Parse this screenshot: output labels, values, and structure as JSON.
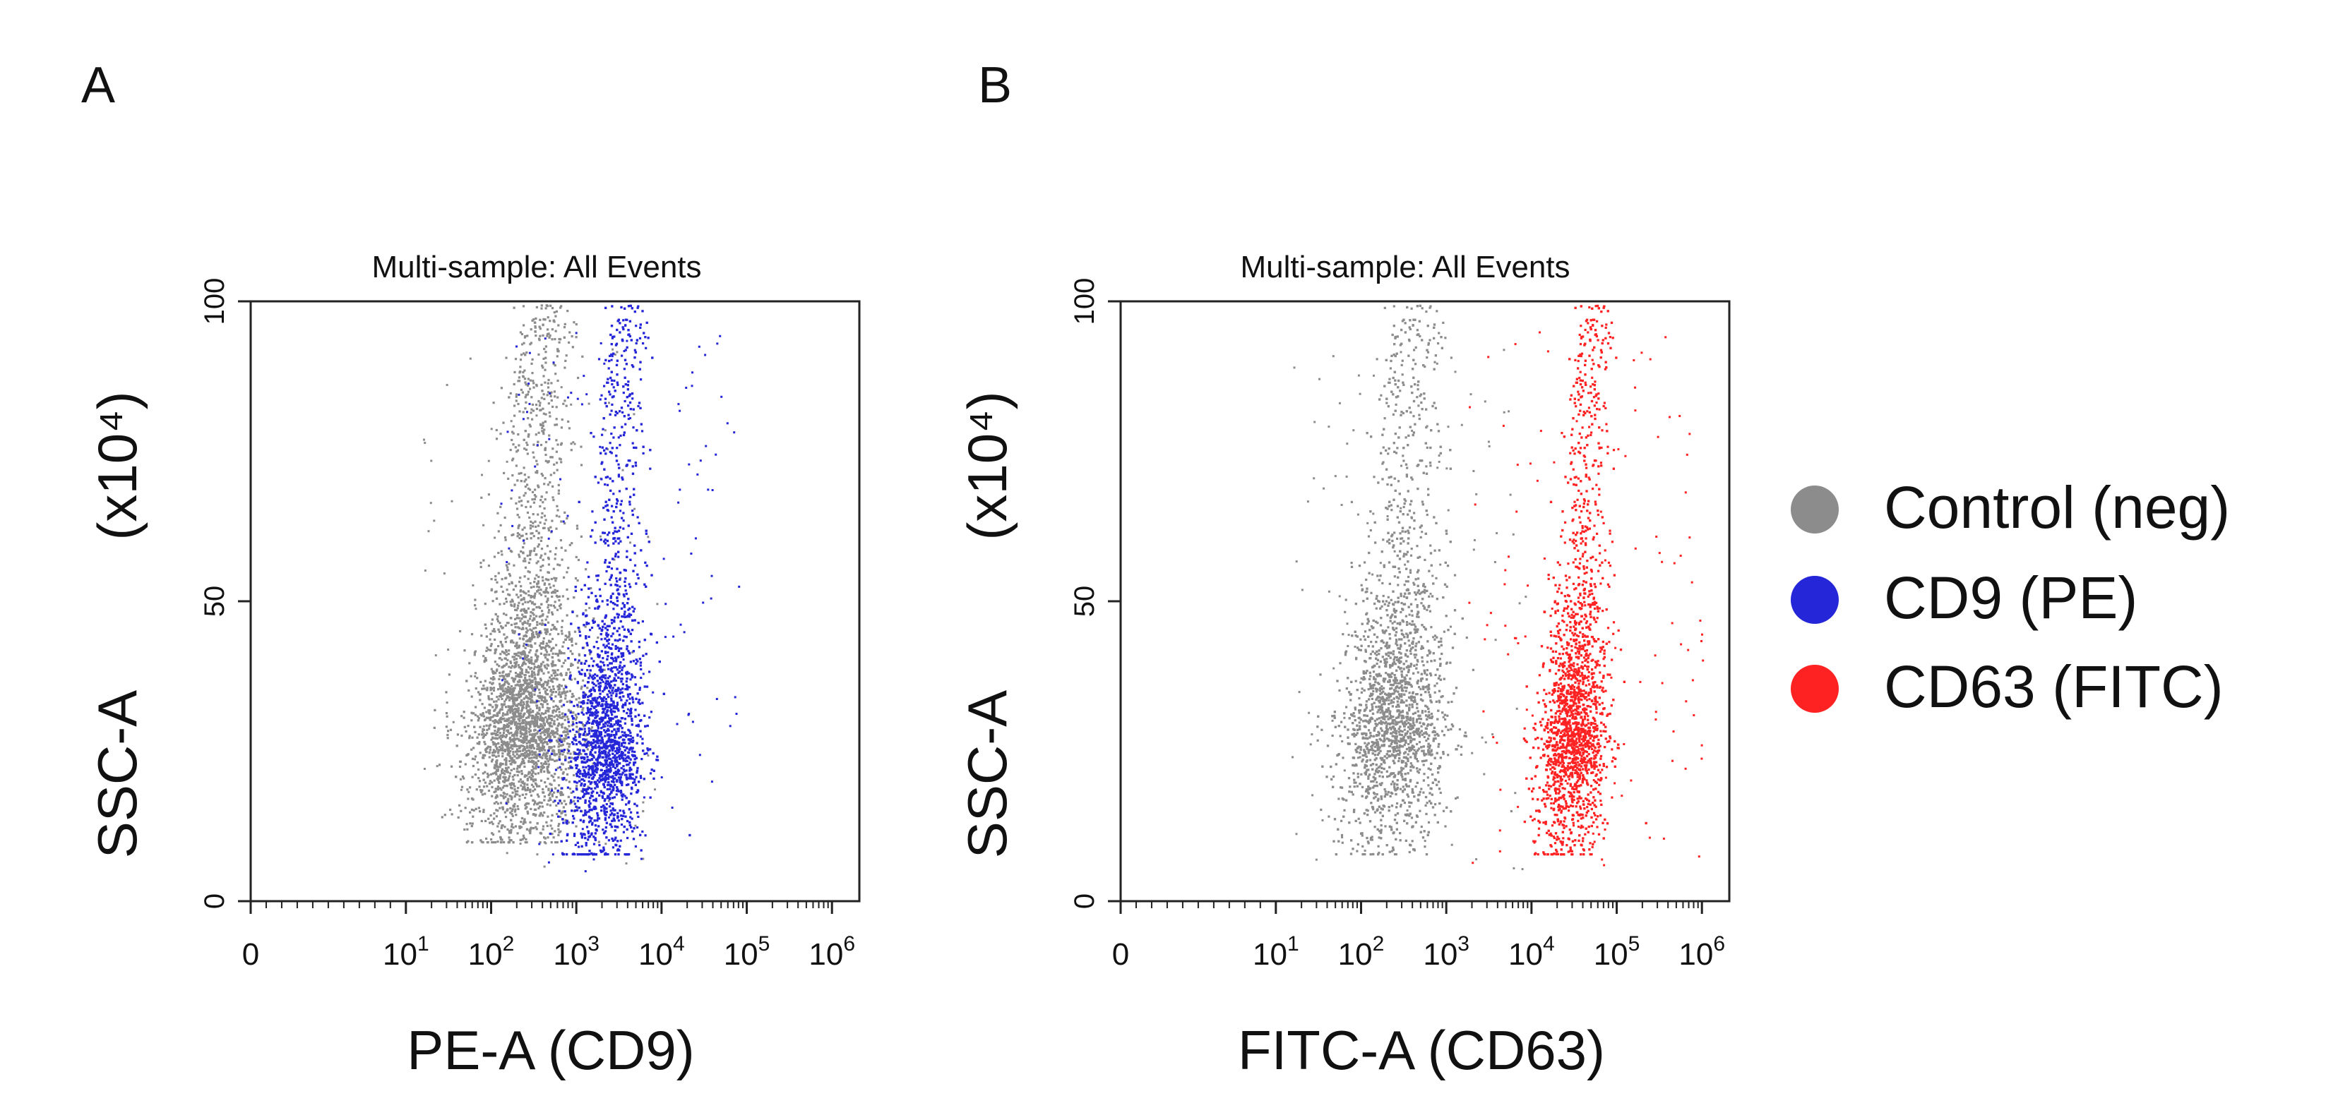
{
  "panel_labels": [
    "A",
    "B"
  ],
  "legend": [
    {
      "label": "Control (neg)",
      "color": "#8c8c8c"
    },
    {
      "label": "CD9 (PE)",
      "color": "#2626d9"
    },
    {
      "label": "CD63 (FITC)",
      "color": "#ff2222"
    }
  ],
  "chart_data": [
    {
      "type": "scatter",
      "panel": "A",
      "title": "Multi-sample: All Events",
      "xlabel": "PE-A (CD9)",
      "ylabel_main": "SSC-A",
      "ylabel_unit": "(x10⁴)",
      "x_scale": "biexponential (0, then log10 10^1..10^6)",
      "xlim": [
        0,
        1000000
      ],
      "ylim": [
        0,
        100
      ],
      "x_ticks": [
        {
          "base": "0",
          "exp": ""
        },
        {
          "base": "10",
          "exp": "1"
        },
        {
          "base": "10",
          "exp": "2"
        },
        {
          "base": "10",
          "exp": "3"
        },
        {
          "base": "10",
          "exp": "4"
        },
        {
          "base": "10",
          "exp": "5"
        },
        {
          "base": "10",
          "exp": "6"
        }
      ],
      "y_ticks": [
        "0",
        "50",
        "100"
      ],
      "series": [
        {
          "name": "Control (neg)",
          "color": "#8c8c8c",
          "center_log10_x": 2.35,
          "x_spread_log10": 0.35,
          "y_range": [
            10,
            100
          ],
          "y_mode": 24
        },
        {
          "name": "CD9 (PE)",
          "color": "#2626d9",
          "center_log10_x": 3.3,
          "x_spread_log10": 0.25,
          "y_range": [
            8,
            100
          ],
          "y_mode": 20
        }
      ]
    },
    {
      "type": "scatter",
      "panel": "B",
      "title": "Multi-sample: All Events",
      "xlabel": "FITC-A (CD63)",
      "ylabel_main": "SSC-A",
      "ylabel_unit": "(x10⁴)",
      "x_scale": "biexponential (0, then log10 10^1..10^6)",
      "xlim": [
        0,
        1000000
      ],
      "ylim": [
        0,
        100
      ],
      "x_ticks": [
        {
          "base": "0",
          "exp": ""
        },
        {
          "base": "10",
          "exp": "1"
        },
        {
          "base": "10",
          "exp": "2"
        },
        {
          "base": "10",
          "exp": "3"
        },
        {
          "base": "10",
          "exp": "4"
        },
        {
          "base": "10",
          "exp": "5"
        },
        {
          "base": "10",
          "exp": "6"
        }
      ],
      "y_ticks": [
        "0",
        "50",
        "100"
      ],
      "series": [
        {
          "name": "Control (neg)",
          "color": "#8c8c8c",
          "center_log10_x": 2.35,
          "x_spread_log10": 0.35,
          "y_range": [
            8,
            100
          ],
          "y_mode": 24
        },
        {
          "name": "CD63 (FITC)",
          "color": "#ff2222",
          "center_log10_x": 4.45,
          "x_spread_log10": 0.22,
          "y_range": [
            8,
            100
          ],
          "y_mode": 22
        }
      ]
    }
  ]
}
